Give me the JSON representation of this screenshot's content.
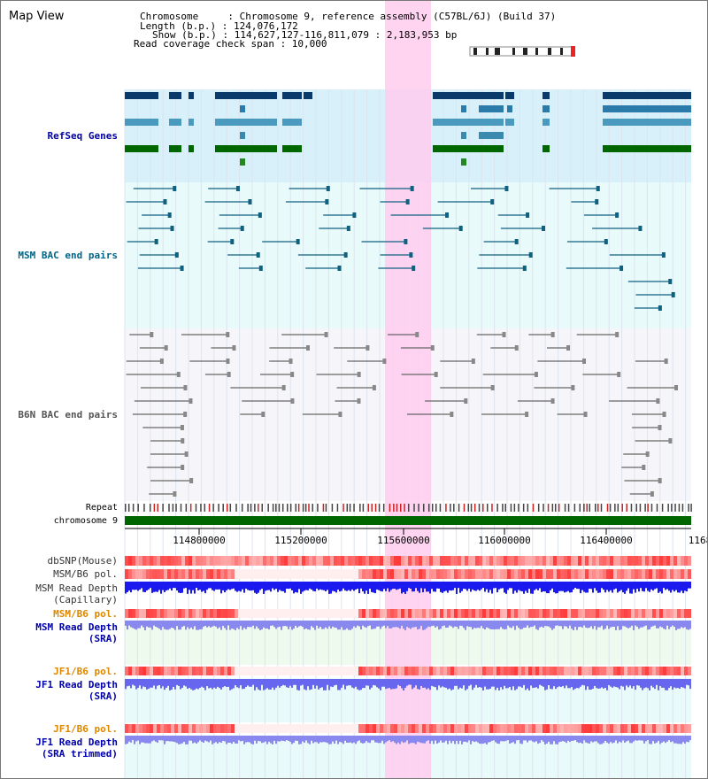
{
  "title": "Map View",
  "info": {
    "chromosome": "Chromosome     : Chromosome 9, reference assembly (C57BL/6J) (Build 37)",
    "length": "Length (b.p.) : 124,076,172",
    "show": "Show (b.p.) : 114,627,127-116,811,079 : 2,183,953 bp",
    "coverage": "Read coverage check span : 10,000"
  },
  "tracks": {
    "refseq": "RefSeq Genes",
    "msm_bac": "MSM BAC end pairs",
    "b6n_bac": "B6N BAC end pairs",
    "repeat": "Repeat",
    "chromosome": "chromosome 9",
    "dbsnp": "dbSNP(Mouse)",
    "msm_b6_pol_1": "MSM/B6 pol.",
    "msm_read_depth_cap_1": "MSM Read Depth",
    "msm_read_depth_cap_2": "(Capillary)",
    "msm_b6_pol_2": "MSM/B6 pol.",
    "msm_read_depth_sra_1": "MSM Read Depth",
    "msm_read_depth_sra_2": "(SRA)",
    "jf1_b6_pol_1": "JF1/B6 pol.",
    "jf1_read_depth_sra_1": "JF1 Read Depth",
    "jf1_read_depth_sra_2": "(SRA)",
    "jf1_b6_pol_2": "JF1/B6 pol.",
    "jf1_read_depth_trim_1": "JF1 Read Depth",
    "jf1_read_depth_trim_2": "(SRA trimmed)"
  },
  "axis_ticks": [
    "114800000",
    "115200000",
    "115600000",
    "116000000",
    "116400000",
    "1168"
  ],
  "colors": {
    "refseq_label": "#0000aa",
    "msm_label": "#006688",
    "b6n_label": "#555555",
    "pol_msm_label": "#dd8800",
    "depth_label": "#0000aa",
    "highlight": "#ffccee",
    "chromosome_bar": "#006600",
    "refseq_bg": "#d8f0fa",
    "msm_bg": "#e8fafa"
  }
}
